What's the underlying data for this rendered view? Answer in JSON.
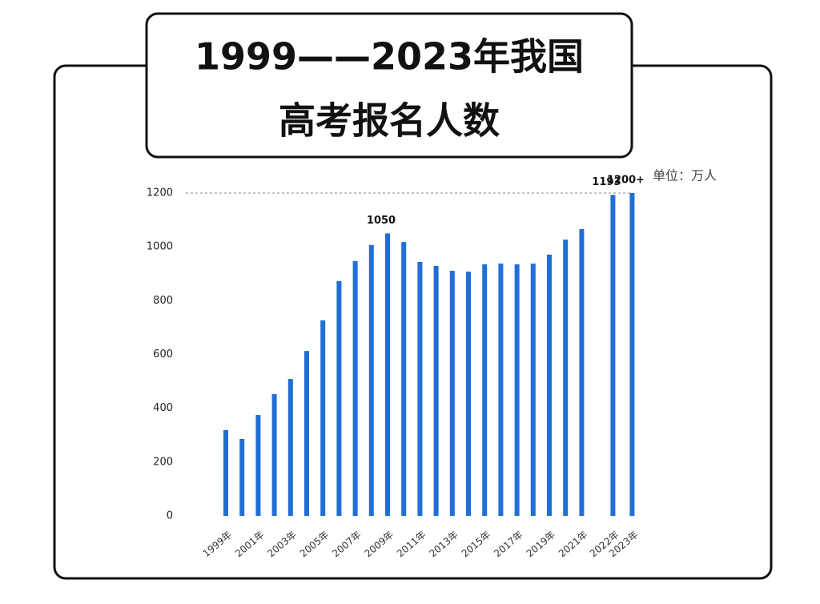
{
  "chart_data": {
    "type": "bar",
    "title_lines": [
      "1999——2023年我国",
      "高考报名人数"
    ],
    "unit": "单位：万人",
    "categories": [
      "1999年",
      null,
      "2001年",
      null,
      "2003年",
      null,
      "2005年",
      null,
      "2007年",
      null,
      "2009年",
      null,
      "2011年",
      null,
      "2013年",
      null,
      "2015年",
      null,
      "2017年",
      null,
      "2019年",
      null,
      "2021年",
      "2022年",
      "2023年"
    ],
    "values": [
      319,
      286,
      375,
      453,
      509,
      613,
      727,
      873,
      947,
      1007,
      1050,
      1018,
      944,
      929,
      911,
      908,
      935,
      938,
      935,
      938,
      971,
      1027,
      1066,
      1193,
      1200
    ],
    "value_labels": [
      null,
      null,
      null,
      null,
      null,
      null,
      null,
      null,
      null,
      null,
      "1050",
      null,
      null,
      null,
      null,
      null,
      null,
      null,
      null,
      null,
      null,
      null,
      null,
      "1193",
      "1200+"
    ],
    "color": "#1f6fd6",
    "ylim": [
      0,
      1200
    ],
    "yticks": [
      0,
      200,
      400,
      600,
      800,
      1000,
      1200
    ],
    "grid": false
  }
}
